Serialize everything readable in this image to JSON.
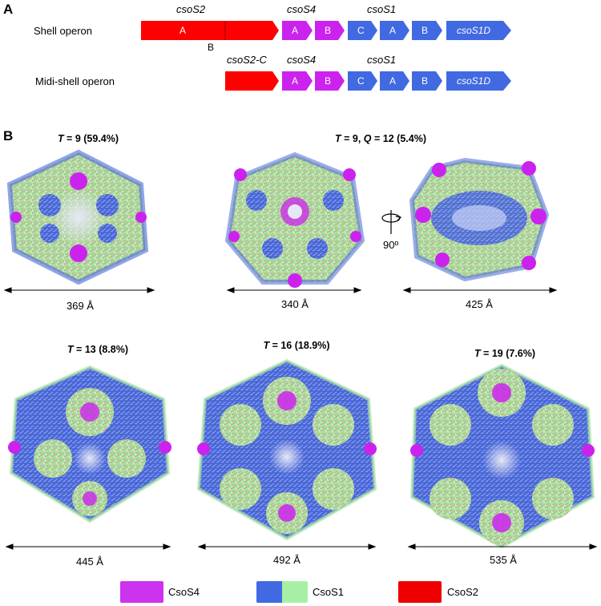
{
  "panel_a": {
    "letter": "A",
    "shell": {
      "label": "Shell operon",
      "genes": {
        "csoS2": "csoS2",
        "csoS4": "csoS4",
        "csoS1": "csoS1"
      },
      "seg_csoS2_A": "A",
      "seg_csoS2_B": "B",
      "seg_csoS4_A": "A",
      "seg_csoS4_B": "B",
      "seg_csoS1_C": "C",
      "seg_csoS1_A": "A",
      "seg_csoS1_B": "B",
      "seg_csoS1D": "csoS1D"
    },
    "midi": {
      "label": "Midi-shell operon",
      "genes": {
        "csoS2C": "csoS2-C",
        "csoS4": "csoS4",
        "csoS1": "csoS1"
      },
      "seg_csoS4_A": "A",
      "seg_csoS4_B": "B",
      "seg_csoS1_C": "C",
      "seg_csoS1_A": "A",
      "seg_csoS1_B": "B",
      "seg_csoS1D": "csoS1D"
    }
  },
  "panel_b": {
    "letter": "B",
    "shells": [
      {
        "t_value": "9",
        "q_value": "",
        "percent": "(59.4%)",
        "diameter": "369 Å"
      },
      {
        "t_value": "9",
        "q_value": "12",
        "percent": "(5.4%)",
        "diameter": "340 Å"
      },
      {
        "t_value": "",
        "q_value": "",
        "percent": "",
        "diameter": "425 Å"
      },
      {
        "t_value": "13",
        "q_value": "",
        "percent": "(8.8%)",
        "diameter": "445 Å"
      },
      {
        "t_value": "16",
        "q_value": "",
        "percent": "(18.9%)",
        "diameter": "492 Å"
      },
      {
        "t_value": "19",
        "q_value": "",
        "percent": "(7.6%)",
        "diameter": "535 Å"
      }
    ],
    "rotation_label": "90º",
    "t_symbol": "T",
    "q_symbol": "Q"
  },
  "legend": [
    {
      "label": "CsoS4",
      "colors": [
        "#cc33ee"
      ]
    },
    {
      "label": "CsoS1",
      "colors": [
        "#4169e1",
        "#a6f0a6"
      ]
    },
    {
      "label": "CsoS2",
      "colors": [
        "#ee0000"
      ]
    }
  ],
  "colors": {
    "csoS2": "#ff0000",
    "csoS4": "#cc22ee",
    "csoS1": "#4169e1",
    "shell_green": "#9fe09a",
    "shell_blue": "#4a68d8"
  }
}
